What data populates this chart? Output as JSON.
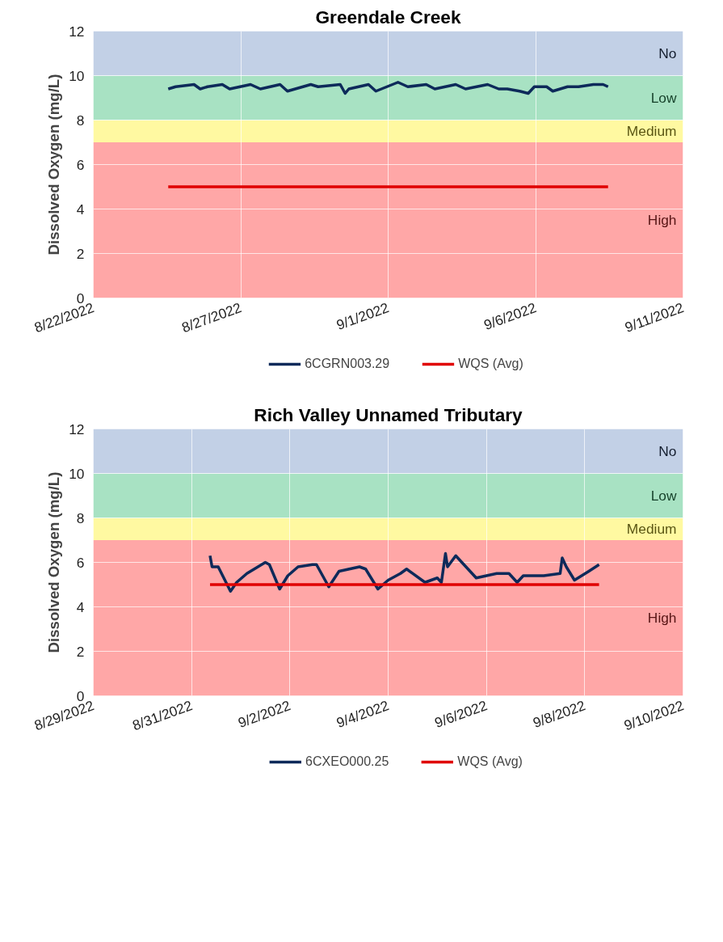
{
  "chart_data": [
    {
      "type": "line",
      "title": "Greendale Creek",
      "ylabel": "Dissolved Oxygen (mg/L)",
      "xlim": [
        "2022-08-22",
        "2022-09-11"
      ],
      "xticks": [
        {
          "value": "2022-08-22",
          "label": "8/22/2022"
        },
        {
          "value": "2022-08-27",
          "label": "8/27/2022"
        },
        {
          "value": "2022-09-01",
          "label": "9/1/2022"
        },
        {
          "value": "2022-09-06",
          "label": "9/6/2022"
        },
        {
          "value": "2022-09-11",
          "label": "9/11/2022"
        }
      ],
      "ylim": [
        0,
        12
      ],
      "yticks": [
        0,
        2,
        4,
        6,
        8,
        10,
        12
      ],
      "grid": true,
      "legend": "bottom",
      "bands": [
        {
          "axis": "y",
          "from": 0,
          "to": 7,
          "label": "High",
          "color": "#ffa7a7"
        },
        {
          "axis": "y",
          "from": 7,
          "to": 8,
          "label": "Medium",
          "color": "#fff9a1"
        },
        {
          "axis": "y",
          "from": 8,
          "to": 10,
          "label": "Low",
          "color": "#a8e2c3"
        },
        {
          "axis": "y",
          "from": 10,
          "to": 12,
          "label": "No",
          "color": "#c2d0e6"
        }
      ],
      "series": [
        {
          "name": "6CGRN003.29",
          "color": "#0d2a5a",
          "x": [
            "2022-08-24T13:00",
            "2022-08-24T19:00",
            "2022-08-25T10:00",
            "2022-08-25T15:00",
            "2022-08-25T21:00",
            "2022-08-26T09:00",
            "2022-08-26T15:00",
            "2022-08-27T08:00",
            "2022-08-27T16:00",
            "2022-08-28T08:00",
            "2022-08-28T14:00",
            "2022-08-29T09:00",
            "2022-08-29T15:00",
            "2022-08-30T09:00",
            "2022-08-30T13:00",
            "2022-08-30T16:00",
            "2022-08-31T08:00",
            "2022-08-31T14:00",
            "2022-09-01T08:00",
            "2022-09-01T16:00",
            "2022-09-02T07:00",
            "2022-09-02T14:00",
            "2022-09-03T07:00",
            "2022-09-03T15:00",
            "2022-09-04T09:00",
            "2022-09-04T18:00",
            "2022-09-05T01:00",
            "2022-09-05T11:00",
            "2022-09-05T18:00",
            "2022-09-05T23:00",
            "2022-09-06T09:00",
            "2022-09-06T14:00",
            "2022-09-07T02:00",
            "2022-09-07T11:00",
            "2022-09-07T23:00",
            "2022-09-08T07:00",
            "2022-09-08T11:00"
          ],
          "values": [
            9.4,
            9.5,
            9.6,
            9.4,
            9.5,
            9.6,
            9.4,
            9.6,
            9.4,
            9.6,
            9.3,
            9.6,
            9.5,
            9.6,
            9.2,
            9.4,
            9.6,
            9.3,
            9.7,
            9.5,
            9.6,
            9.4,
            9.6,
            9.4,
            9.6,
            9.4,
            9.4,
            9.3,
            9.2,
            9.5,
            9.5,
            9.3,
            9.5,
            9.5,
            9.6,
            9.6,
            9.5
          ]
        },
        {
          "name": "WQS (Avg)",
          "color": "#e00000",
          "x": [
            "2022-08-24T13:00",
            "2022-09-08T11:00"
          ],
          "values": [
            5,
            5
          ]
        }
      ]
    },
    {
      "type": "line",
      "title": "Rich Valley Unnamed Tributary",
      "ylabel": "Dissolved Oxygen (mg/L)",
      "xlim": [
        "2022-08-29",
        "2022-09-10"
      ],
      "xticks": [
        {
          "value": "2022-08-29",
          "label": "8/29/2022"
        },
        {
          "value": "2022-08-31",
          "label": "8/31/2022"
        },
        {
          "value": "2022-09-02",
          "label": "9/2/2022"
        },
        {
          "value": "2022-09-04",
          "label": "9/4/2022"
        },
        {
          "value": "2022-09-06",
          "label": "9/6/2022"
        },
        {
          "value": "2022-09-08",
          "label": "9/8/2022"
        },
        {
          "value": "2022-09-10",
          "label": "9/10/2022"
        }
      ],
      "ylim": [
        0,
        12
      ],
      "yticks": [
        0,
        2,
        4,
        6,
        8,
        10,
        12
      ],
      "grid": true,
      "legend": "bottom",
      "bands": [
        {
          "axis": "y",
          "from": 0,
          "to": 7,
          "label": "High",
          "color": "#ffa7a7"
        },
        {
          "axis": "y",
          "from": 7,
          "to": 8,
          "label": "Medium",
          "color": "#fff9a1"
        },
        {
          "axis": "y",
          "from": 8,
          "to": 10,
          "label": "Low",
          "color": "#a8e2c3"
        },
        {
          "axis": "y",
          "from": 10,
          "to": 12,
          "label": "No",
          "color": "#c2d0e6"
        }
      ],
      "series": [
        {
          "name": "6CXEO000.25",
          "color": "#0d2a5a",
          "x": [
            "2022-08-31T09:00",
            "2022-08-31T10:00",
            "2022-08-31T13:00",
            "2022-08-31T19:00",
            "2022-08-31T22:00",
            "2022-09-01T03:00",
            "2022-09-01T12:00",
            "2022-09-01T14:00",
            "2022-09-01T19:00",
            "2022-09-01T23:00",
            "2022-09-02T04:00",
            "2022-09-02T11:00",
            "2022-09-02T13:00",
            "2022-09-02T19:00",
            "2022-09-03T00:00",
            "2022-09-03T10:00",
            "2022-09-03T13:00",
            "2022-09-03T19:00",
            "2022-09-04T00:00",
            "2022-09-04T06:00",
            "2022-09-04T09:00",
            "2022-09-04T18:00",
            "2022-09-05T00:00",
            "2022-09-05T02:00",
            "2022-09-05T04:00",
            "2022-09-05T05:00",
            "2022-09-05T09:00",
            "2022-09-05T14:00",
            "2022-09-05T19:00",
            "2022-09-06T05:00",
            "2022-09-06T11:00",
            "2022-09-06T15:00",
            "2022-09-06T18:00",
            "2022-09-07T04:00",
            "2022-09-07T12:00",
            "2022-09-07T13:00",
            "2022-09-07T15:00",
            "2022-09-07T19:00",
            "2022-09-08T02:00",
            "2022-09-08T07:00"
          ],
          "values": [
            6.3,
            5.8,
            5.8,
            4.7,
            5.1,
            5.5,
            6.0,
            5.9,
            4.8,
            5.4,
            5.8,
            5.9,
            5.9,
            4.9,
            5.6,
            5.8,
            5.7,
            4.8,
            5.2,
            5.5,
            5.7,
            5.1,
            5.3,
            5.1,
            6.4,
            5.8,
            6.3,
            5.8,
            5.3,
            5.5,
            5.5,
            5.1,
            5.4,
            5.4,
            5.5,
            6.2,
            5.8,
            5.2,
            5.6,
            5.9
          ]
        },
        {
          "name": "WQS (Avg)",
          "color": "#e00000",
          "x": [
            "2022-08-31T09:00",
            "2022-09-08T07:00"
          ],
          "values": [
            5,
            5
          ]
        }
      ]
    }
  ]
}
